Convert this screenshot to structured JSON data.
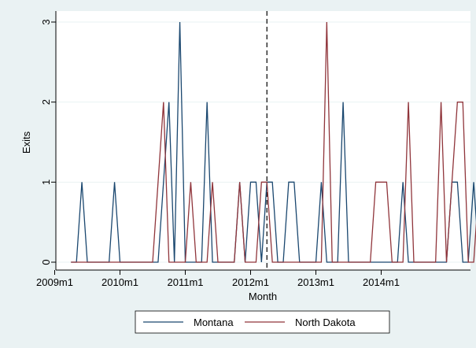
{
  "chart_data": {
    "type": "line",
    "title": "",
    "xlabel": "Month",
    "ylabel": "Exits",
    "x_start": "2009m4",
    "x_ticks": [
      "2009m1",
      "2010m1",
      "2011m1",
      "2012m1",
      "2013m1",
      "2014m1"
    ],
    "y_ticks": [
      "0",
      "1",
      "2",
      "3"
    ],
    "ylim": [
      0,
      3
    ],
    "vertical_line": {
      "x": "2012m4",
      "style": "dashed"
    },
    "grid": true,
    "legend_position": "bottom",
    "series": [
      {
        "name": "Montana",
        "color": "#1a476f",
        "values": [
          0,
          0,
          1,
          0,
          0,
          0,
          0,
          0,
          1,
          0,
          0,
          0,
          0,
          0,
          0,
          0,
          0,
          1,
          2,
          0,
          3,
          0,
          0,
          0,
          0,
          2,
          0,
          0,
          0,
          0,
          0,
          1,
          0,
          1,
          1,
          0,
          1,
          1,
          0,
          0,
          1,
          1,
          0,
          0,
          0,
          0,
          1,
          0,
          0,
          0,
          2,
          0,
          0,
          0,
          0,
          0,
          0,
          0,
          0,
          0,
          0,
          1,
          0,
          0,
          0,
          0,
          0,
          0,
          0,
          0,
          1,
          1,
          0,
          0,
          1,
          0
        ]
      },
      {
        "name": "North Dakota",
        "color": "#90353b",
        "values": [
          0,
          0,
          0,
          0,
          0,
          0,
          0,
          0,
          0,
          0,
          0,
          0,
          0,
          0,
          0,
          0,
          1,
          2,
          0,
          0,
          0,
          0,
          1,
          0,
          0,
          0,
          1,
          0,
          0,
          0,
          0,
          1,
          0,
          0,
          0,
          1,
          1,
          0,
          0,
          0,
          0,
          0,
          0,
          0,
          0,
          0,
          0,
          3,
          0,
          0,
          0,
          0,
          0,
          0,
          0,
          0,
          1,
          1,
          1,
          0,
          0,
          0,
          2,
          0,
          0,
          0,
          0,
          0,
          2,
          0,
          1,
          2,
          2,
          0,
          0,
          1,
          0
        ]
      }
    ]
  }
}
